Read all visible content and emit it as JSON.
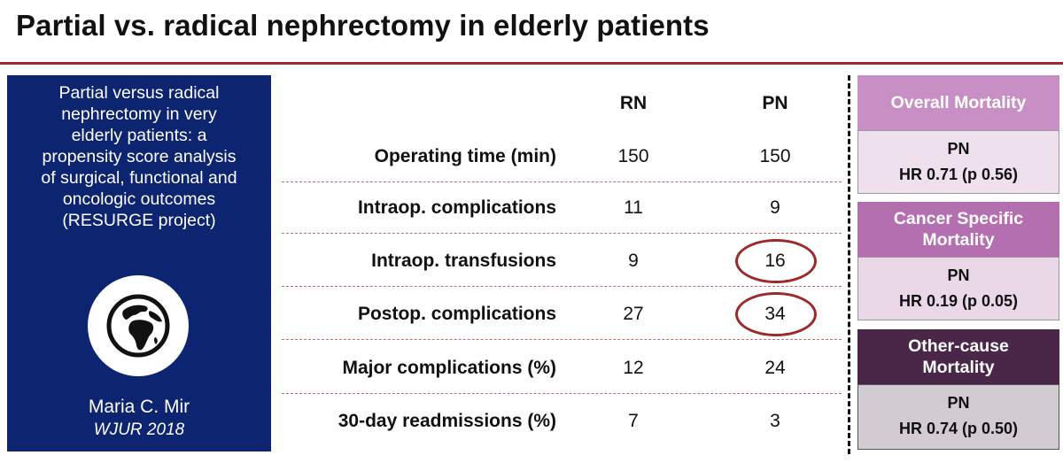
{
  "slide": {
    "title": "Partial vs. radical nephrectomy in elderly patients"
  },
  "paper": {
    "title_lines": [
      "Partial versus radical",
      "nephrectomy in very",
      "elderly patients: a",
      "propensity score analysis",
      "of surgical, functional and",
      "oncologic outcomes",
      "(RESURGE project)"
    ],
    "icon": "globe-icon",
    "author": "Maria C. Mir",
    "journal": "WJUR 2018",
    "background_color": "#0d2470"
  },
  "table": {
    "headers": {
      "rn": "RN",
      "pn": "PN"
    },
    "rows": [
      {
        "label": "Operating time (min)",
        "rn": "150",
        "pn": "150",
        "circled": false
      },
      {
        "label": "Intraop. complications",
        "rn": "11",
        "pn": "9",
        "circled": false
      },
      {
        "label": "Intraop. transfusions",
        "rn": "9",
        "pn": "16",
        "circled": true
      },
      {
        "label": "Postop. complications",
        "rn": "27",
        "pn": "34",
        "circled": true
      },
      {
        "label": "Major complications (%)",
        "rn": "12",
        "pn": "24",
        "circled": false
      },
      {
        "label": "30-day readmissions (%)",
        "rn": "7",
        "pn": "3",
        "circled": false
      }
    ]
  },
  "mortality": [
    {
      "title": "Overall Mortality",
      "group": "PN",
      "hr": "HR 0.71 (p 0.56)",
      "head_color": "#c78fc4",
      "body_color": "#efe0ee"
    },
    {
      "title": "Cancer Specific Mortality",
      "group": "PN",
      "hr": "HR 0.19 (p 0.05)",
      "head_color": "#b46fb0",
      "body_color": "#ead8e9"
    },
    {
      "title": "Other-cause Mortality",
      "group": "PN",
      "hr": "HR 0.74 (p 0.50)",
      "head_color": "#4a2748",
      "body_color": "#d2cbd1"
    }
  ]
}
